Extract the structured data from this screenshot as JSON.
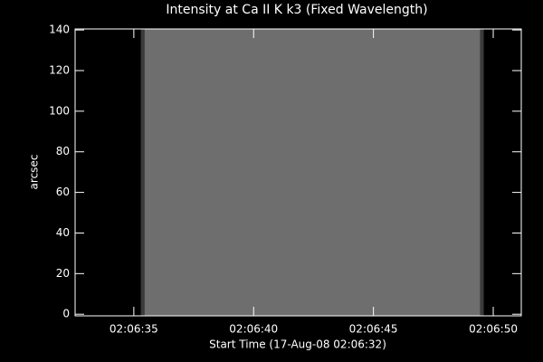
{
  "chart_data": {
    "type": "image",
    "title": "Intensity at Ca II K k3 (Fixed Wavelength)",
    "x_label": "Start Time (17-Aug-08 02:06:32)",
    "y_label": "arcsec",
    "x": [
      3.3,
      17.6
    ],
    "color": "#6e6e6e",
    "xlim": [
      0.55,
      19.17
    ],
    "ylim": [
      -0.8,
      140.5
    ],
    "xticks": [
      {
        "value": 3,
        "label": "02:06:35"
      },
      {
        "value": 8,
        "label": "02:06:40"
      },
      {
        "value": 13,
        "label": "02:06:45"
      },
      {
        "value": 18,
        "label": "02:06:50"
      }
    ],
    "yticks": [
      0,
      20,
      40,
      60,
      80,
      100,
      120,
      140
    ]
  }
}
